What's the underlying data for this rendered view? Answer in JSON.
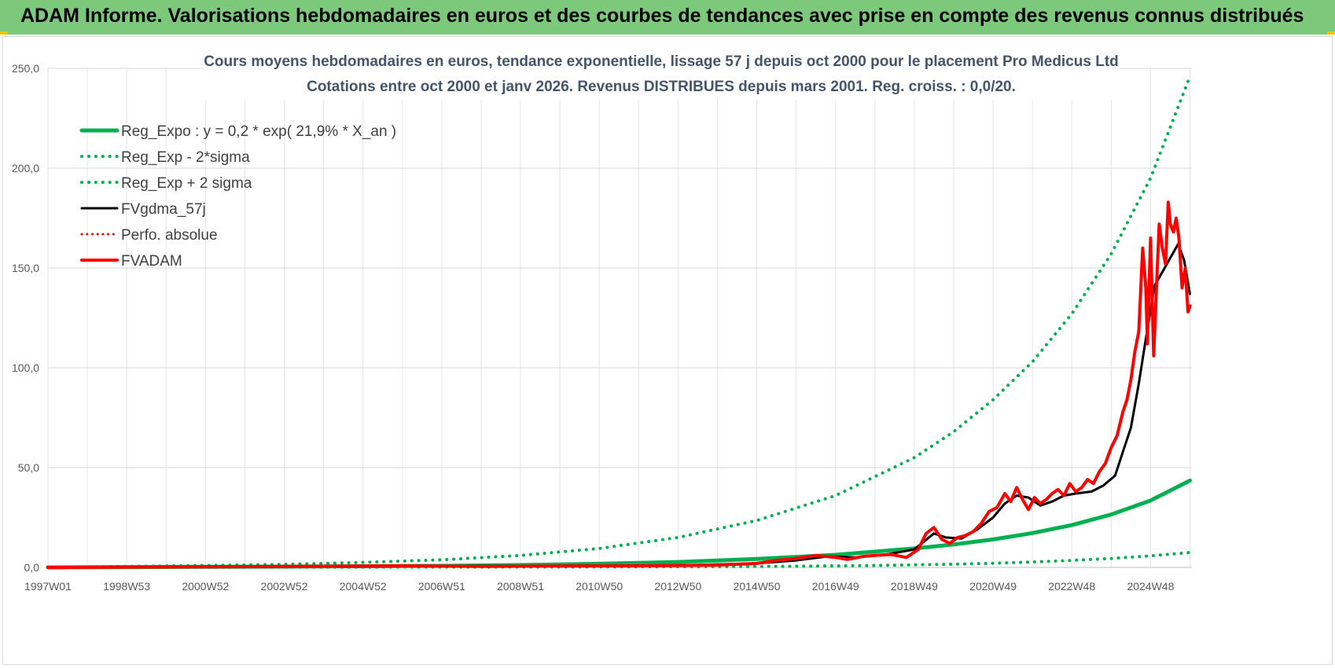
{
  "banner": {
    "title": "ADAM Informe. Valorisations hebdomadaires en euros et des courbes de tendances avec prise en compte des revenus connus distribués"
  },
  "chart_data": {
    "type": "line",
    "title_line1": "Cours moyens hebdomadaires en euros, tendance exponentielle, lissage 57 j depuis oct 2000 pour le placement Pro Medicus Ltd",
    "title_line2": "Cotations entre oct 2000 et janv 2026. Revenus DISTRIBUES depuis mars 2001. Reg. croiss. : 0,0/20.",
    "xlabel": "",
    "ylabel": "",
    "x_range": [
      1997.0,
      2026.05
    ],
    "ylim": [
      0,
      250
    ],
    "y_ticks": [
      0,
      50,
      100,
      150,
      200,
      250
    ],
    "y_tick_labels": [
      "0,0",
      "50,0",
      "100,0",
      "150,0",
      "200,0",
      "250,0"
    ],
    "x_tick_labels": [
      "1997W01",
      "1998W53",
      "2000W52",
      "2002W52",
      "2004W52",
      "2006W51",
      "2008W51",
      "2010W50",
      "2012W50",
      "2014W50",
      "2016W49",
      "2018W49",
      "2020W49",
      "2022W48",
      "2024W48"
    ],
    "x_tick_positions": [
      1997.0,
      1999.0,
      2001.0,
      2003.0,
      2005.0,
      2007.0,
      2009.0,
      2011.0,
      2013.0,
      2015.0,
      2017.0,
      2019.0,
      2021.0,
      2023.0,
      2025.0
    ],
    "grid": true,
    "legend_position": "top-left",
    "series": [
      {
        "name": "Reg_Expo : y = 0,2 * exp( 21,9% *  X_an )",
        "color": "#00b050",
        "style": "solid",
        "width": 5,
        "x": [
          1997.0,
          2001.0,
          2003.0,
          2005.0,
          2007.0,
          2009.0,
          2011.0,
          2013.0,
          2015.0,
          2017.0,
          2019.0,
          2020.0,
          2021.0,
          2022.0,
          2023.0,
          2024.0,
          2025.0,
          2026.0
        ],
        "y": [
          0.0,
          0.3,
          0.4,
          0.6,
          0.8,
          1.2,
          1.8,
          2.7,
          4.2,
          6.3,
          9.5,
          11.5,
          14.0,
          17.2,
          21.2,
          26.5,
          33.5,
          43.5
        ]
      },
      {
        "name": "Reg_Exp - 2*sigma",
        "color": "#00b050",
        "style": "dotted",
        "width": 4,
        "x": [
          1997.0,
          2005.0,
          2010.0,
          2014.0,
          2016.0,
          2018.0,
          2020.0,
          2021.0,
          2022.0,
          2023.0,
          2024.0,
          2025.0,
          2026.0
        ],
        "y": [
          0.0,
          0.1,
          0.2,
          0.4,
          0.6,
          1.0,
          1.6,
          2.1,
          2.7,
          3.5,
          4.5,
          5.8,
          7.5
        ]
      },
      {
        "name": "Reg_Exp + 2 sigma",
        "color": "#00b050",
        "style": "dotted",
        "width": 4,
        "x": [
          1997.0,
          2001.0,
          2003.0,
          2005.0,
          2007.0,
          2009.0,
          2011.0,
          2013.0,
          2015.0,
          2017.0,
          2019.0,
          2020.0,
          2021.0,
          2022.0,
          2023.0,
          2024.0,
          2025.0,
          2026.0
        ],
        "y": [
          0.0,
          1.0,
          1.5,
          2.5,
          3.8,
          6.0,
          9.5,
          15.0,
          23.5,
          36.0,
          55.0,
          68.0,
          84.0,
          103.0,
          127.0,
          157.0,
          195.0,
          246.0
        ]
      },
      {
        "name": "FVgdma_57j",
        "color": "#000000",
        "style": "solid",
        "width": 3,
        "x": [
          1997.0,
          2001.0,
          2005.0,
          2009.0,
          2013.0,
          2015.0,
          2016.0,
          2016.8,
          2017.5,
          2018.3,
          2019.0,
          2019.5,
          2019.8,
          2020.2,
          2020.6,
          2021.0,
          2021.3,
          2021.6,
          2021.9,
          2022.2,
          2022.5,
          2022.8,
          2023.1,
          2023.5,
          2023.8,
          2024.1,
          2024.3,
          2024.5,
          2024.7,
          2024.9,
          2025.1,
          2025.3,
          2025.5,
          2025.7,
          2025.85,
          2026.0
        ],
        "y": [
          0.0,
          0.3,
          0.5,
          0.8,
          1.0,
          2.0,
          3.5,
          5.5,
          5.0,
          6.5,
          9.0,
          17.0,
          15.0,
          14.5,
          19.0,
          25.0,
          32.0,
          36.0,
          35.0,
          31.0,
          33.0,
          36.0,
          37.0,
          38.0,
          41.0,
          46.0,
          58.0,
          70.0,
          92.0,
          117.0,
          141.0,
          148.0,
          155.0,
          162.0,
          154.0,
          137.0
        ]
      },
      {
        "name": "Perfo. absolue",
        "color": "#ff0000",
        "style": "dotted",
        "width": 3,
        "x": [],
        "y": []
      },
      {
        "name": "FVADAM",
        "color": "#ff0000",
        "style": "solid",
        "width": 4,
        "x": [
          1997.0,
          2001.0,
          2004.0,
          2006.0,
          2008.0,
          2010.0,
          2012.0,
          2014.0,
          2015.0,
          2015.5,
          2016.0,
          2016.5,
          2017.0,
          2017.3,
          2017.7,
          2018.0,
          2018.4,
          2018.8,
          2019.1,
          2019.3,
          2019.5,
          2019.7,
          2019.9,
          2020.1,
          2020.3,
          2020.5,
          2020.7,
          2020.9,
          2021.1,
          2021.3,
          2021.45,
          2021.6,
          2021.75,
          2021.9,
          2022.05,
          2022.2,
          2022.35,
          2022.5,
          2022.65,
          2022.8,
          2022.95,
          2023.1,
          2023.25,
          2023.4,
          2023.55,
          2023.7,
          2023.85,
          2024.0,
          2024.15,
          2024.3,
          2024.4,
          2024.5,
          2024.6,
          2024.7,
          2024.8,
          2024.88,
          2024.92,
          2025.0,
          2025.08,
          2025.15,
          2025.22,
          2025.3,
          2025.38,
          2025.45,
          2025.5,
          2025.58,
          2025.65,
          2025.72,
          2025.8,
          2025.88,
          2025.95,
          2026.0
        ],
        "y": [
          0.0,
          0.3,
          0.6,
          0.8,
          0.5,
          0.7,
          0.8,
          1.2,
          2.0,
          3.5,
          4.5,
          6.0,
          5.0,
          4.0,
          5.5,
          6.0,
          6.5,
          5.0,
          9.0,
          17.0,
          20.0,
          14.0,
          12.0,
          15.0,
          16.0,
          18.0,
          22.0,
          28.0,
          30.0,
          37.0,
          33.0,
          40.0,
          34.0,
          29.0,
          35.0,
          32.0,
          34.0,
          37.0,
          39.0,
          36.0,
          42.0,
          38.0,
          40.0,
          44.0,
          42.0,
          48.0,
          52.0,
          60.0,
          66.0,
          78.0,
          84.0,
          94.0,
          108.0,
          118.0,
          160.0,
          140.0,
          112.0,
          165.0,
          106.0,
          140.0,
          172.0,
          160.0,
          152.0,
          183.0,
          172.0,
          168.0,
          175.0,
          165.0,
          140.0,
          150.0,
          128.0,
          131.0
        ]
      }
    ]
  }
}
